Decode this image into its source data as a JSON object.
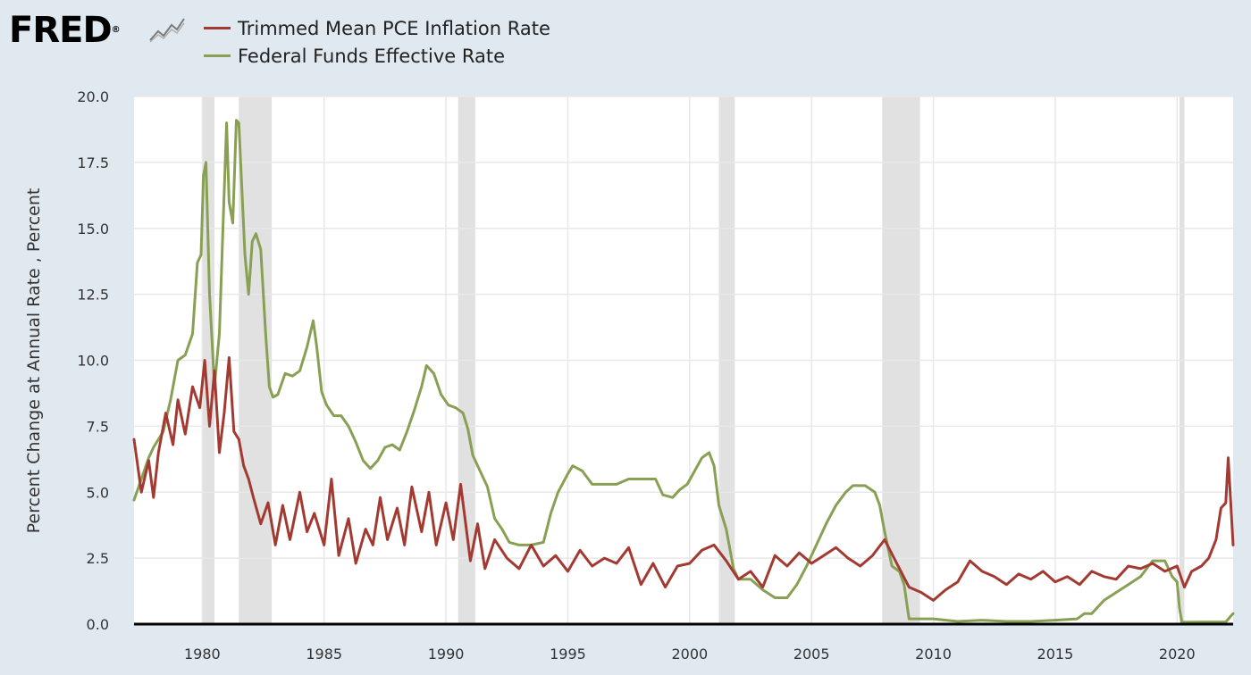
{
  "logo": {
    "text": "FRED",
    "mark": "®",
    "icon": "line-chart-icon"
  },
  "chart_data": {
    "type": "line",
    "title": "",
    "xlabel": "",
    "ylabel": "Percent Change at Annual Rate , Percent",
    "xlim": [
      1977.2,
      2022.3
    ],
    "ylim": [
      0,
      20
    ],
    "yticks": [
      "0.0",
      "2.5",
      "5.0",
      "7.5",
      "10.0",
      "12.5",
      "15.0",
      "17.5",
      "20.0"
    ],
    "xticks": [
      "1980",
      "1985",
      "1990",
      "1995",
      "2000",
      "2005",
      "2010",
      "2015",
      "2020"
    ],
    "grid": true,
    "legend_position": "top-left",
    "recessions": [
      [
        1980.0,
        1980.5
      ],
      [
        1981.5,
        1982.85
      ],
      [
        1990.5,
        1991.2
      ],
      [
        2001.2,
        2001.85
      ],
      [
        2007.9,
        2009.45
      ],
      [
        2020.1,
        2020.3
      ]
    ],
    "series": [
      {
        "name": "Trimmed Mean PCE Inflation Rate",
        "color": "#a33a32",
        "x": [
          1977.2,
          1977.5,
          1977.8,
          1978.0,
          1978.2,
          1978.5,
          1978.8,
          1979.0,
          1979.3,
          1979.6,
          1979.9,
          1980.1,
          1980.3,
          1980.5,
          1980.7,
          1980.9,
          1981.1,
          1981.3,
          1981.5,
          1981.7,
          1981.9,
          1982.1,
          1982.4,
          1982.7,
          1983.0,
          1983.3,
          1983.6,
          1984.0,
          1984.3,
          1984.6,
          1985.0,
          1985.3,
          1985.6,
          1986.0,
          1986.3,
          1986.7,
          1987.0,
          1987.3,
          1987.6,
          1988.0,
          1988.3,
          1988.6,
          1989.0,
          1989.3,
          1989.6,
          1990.0,
          1990.3,
          1990.6,
          1991.0,
          1991.3,
          1991.6,
          1992.0,
          1992.5,
          1993.0,
          1993.5,
          1994.0,
          1994.5,
          1995.0,
          1995.5,
          1996.0,
          1996.5,
          1997.0,
          1997.5,
          1998.0,
          1998.5,
          1999.0,
          1999.5,
          2000.0,
          2000.5,
          2001.0,
          2001.5,
          2002.0,
          2002.5,
          2003.0,
          2003.5,
          2004.0,
          2004.5,
          2005.0,
          2005.5,
          2006.0,
          2006.5,
          2007.0,
          2007.5,
          2008.0,
          2008.5,
          2009.0,
          2009.5,
          2010.0,
          2010.5,
          2011.0,
          2011.5,
          2012.0,
          2012.5,
          2013.0,
          2013.5,
          2014.0,
          2014.5,
          2015.0,
          2015.5,
          2016.0,
          2016.5,
          2017.0,
          2017.5,
          2018.0,
          2018.5,
          2019.0,
          2019.5,
          2020.0,
          2020.3,
          2020.6,
          2021.0,
          2021.3,
          2021.6,
          2021.8,
          2022.0,
          2022.1,
          2022.3
        ],
        "values": [
          7.0,
          5.0,
          6.2,
          4.8,
          6.5,
          8.0,
          6.8,
          8.5,
          7.2,
          9.0,
          8.2,
          10.0,
          7.5,
          9.6,
          6.5,
          8.0,
          10.1,
          7.3,
          7.0,
          6.0,
          5.5,
          4.8,
          3.8,
          4.6,
          3.0,
          4.5,
          3.2,
          5.0,
          3.5,
          4.2,
          3.0,
          5.5,
          2.6,
          4.0,
          2.3,
          3.6,
          3.0,
          4.8,
          3.2,
          4.4,
          3.0,
          5.2,
          3.5,
          5.0,
          3.0,
          4.6,
          3.2,
          5.3,
          2.4,
          3.8,
          2.1,
          3.2,
          2.5,
          2.1,
          3.0,
          2.2,
          2.6,
          2.0,
          2.8,
          2.2,
          2.5,
          2.3,
          2.9,
          1.5,
          2.3,
          1.4,
          2.2,
          2.3,
          2.8,
          3.0,
          2.4,
          1.7,
          2.0,
          1.4,
          2.6,
          2.2,
          2.7,
          2.3,
          2.6,
          2.9,
          2.5,
          2.2,
          2.6,
          3.2,
          2.3,
          1.4,
          1.2,
          0.9,
          1.3,
          1.6,
          2.4,
          2.0,
          1.8,
          1.5,
          1.9,
          1.7,
          2.0,
          1.6,
          1.8,
          1.5,
          2.0,
          1.8,
          1.7,
          2.2,
          2.1,
          2.3,
          2.0,
          2.2,
          1.4,
          2.0,
          2.2,
          2.5,
          3.2,
          4.4,
          4.6,
          6.3,
          3.0
        ]
      },
      {
        "name": "Federal Funds Effective Rate",
        "color": "#89a054",
        "x": [
          1977.2,
          1977.5,
          1977.8,
          1978.0,
          1978.4,
          1978.7,
          1979.0,
          1979.3,
          1979.6,
          1979.8,
          1979.95,
          1980.05,
          1980.15,
          1980.3,
          1980.5,
          1980.7,
          1980.85,
          1981.0,
          1981.1,
          1981.25,
          1981.4,
          1981.5,
          1981.6,
          1981.75,
          1981.9,
          1982.05,
          1982.2,
          1982.4,
          1982.6,
          1982.75,
          1982.9,
          1983.1,
          1983.4,
          1983.7,
          1984.0,
          1984.3,
          1984.55,
          1984.7,
          1984.9,
          1985.1,
          1985.4,
          1985.7,
          1986.0,
          1986.3,
          1986.6,
          1986.9,
          1987.2,
          1987.5,
          1987.8,
          1988.1,
          1988.4,
          1988.7,
          1989.0,
          1989.2,
          1989.5,
          1989.8,
          1990.1,
          1990.4,
          1990.7,
          1990.9,
          1991.1,
          1991.4,
          1991.7,
          1992.0,
          1992.3,
          1992.6,
          1993.0,
          1993.5,
          1994.0,
          1994.3,
          1994.6,
          1995.0,
          1995.2,
          1995.6,
          1996.0,
          1996.5,
          1997.0,
          1997.5,
          1998.0,
          1998.6,
          1998.9,
          1999.3,
          1999.6,
          1999.9,
          2000.2,
          2000.5,
          2000.8,
          2001.0,
          2001.2,
          2001.5,
          2001.8,
          2002.0,
          2002.5,
          2003.0,
          2003.5,
          2004.0,
          2004.4,
          2004.8,
          2005.2,
          2005.6,
          2006.0,
          2006.4,
          2006.7,
          2007.2,
          2007.6,
          2007.8,
          2008.0,
          2008.3,
          2008.6,
          2008.8,
          2009.0,
          2010.0,
          2011.0,
          2012.0,
          2013.0,
          2014.0,
          2015.0,
          2015.9,
          2016.2,
          2016.5,
          2017.0,
          2017.5,
          2018.0,
          2018.5,
          2019.0,
          2019.5,
          2019.8,
          2020.0,
          2020.1,
          2020.2,
          2021.0,
          2022.0,
          2022.2,
          2022.3
        ],
        "values": [
          4.7,
          5.5,
          6.3,
          6.7,
          7.3,
          8.5,
          10.0,
          10.2,
          11.0,
          13.7,
          14.0,
          17.0,
          17.5,
          12.5,
          9.0,
          11.0,
          15.0,
          19.0,
          16.0,
          15.2,
          19.1,
          19.0,
          17.0,
          14.0,
          12.5,
          14.5,
          14.8,
          14.2,
          11.0,
          9.0,
          8.6,
          8.7,
          9.5,
          9.4,
          9.6,
          10.5,
          11.5,
          10.5,
          8.8,
          8.3,
          7.9,
          7.9,
          7.5,
          6.9,
          6.2,
          5.9,
          6.2,
          6.7,
          6.8,
          6.6,
          7.3,
          8.1,
          9.0,
          9.8,
          9.5,
          8.7,
          8.3,
          8.2,
          8.0,
          7.4,
          6.4,
          5.8,
          5.2,
          4.0,
          3.6,
          3.1,
          3.0,
          3.0,
          3.1,
          4.2,
          5.0,
          5.7,
          6.0,
          5.8,
          5.3,
          5.3,
          5.3,
          5.5,
          5.5,
          5.5,
          4.9,
          4.8,
          5.1,
          5.3,
          5.8,
          6.3,
          6.5,
          6.0,
          4.5,
          3.6,
          2.1,
          1.7,
          1.7,
          1.3,
          1.0,
          1.0,
          1.5,
          2.2,
          3.0,
          3.8,
          4.5,
          5.0,
          5.25,
          5.25,
          5.0,
          4.5,
          3.5,
          2.2,
          2.0,
          1.5,
          0.2,
          0.2,
          0.1,
          0.15,
          0.1,
          0.1,
          0.15,
          0.2,
          0.4,
          0.4,
          0.9,
          1.2,
          1.5,
          1.8,
          2.4,
          2.4,
          1.8,
          1.6,
          0.6,
          0.07,
          0.08,
          0.08,
          0.3,
          0.4
        ]
      }
    ]
  }
}
